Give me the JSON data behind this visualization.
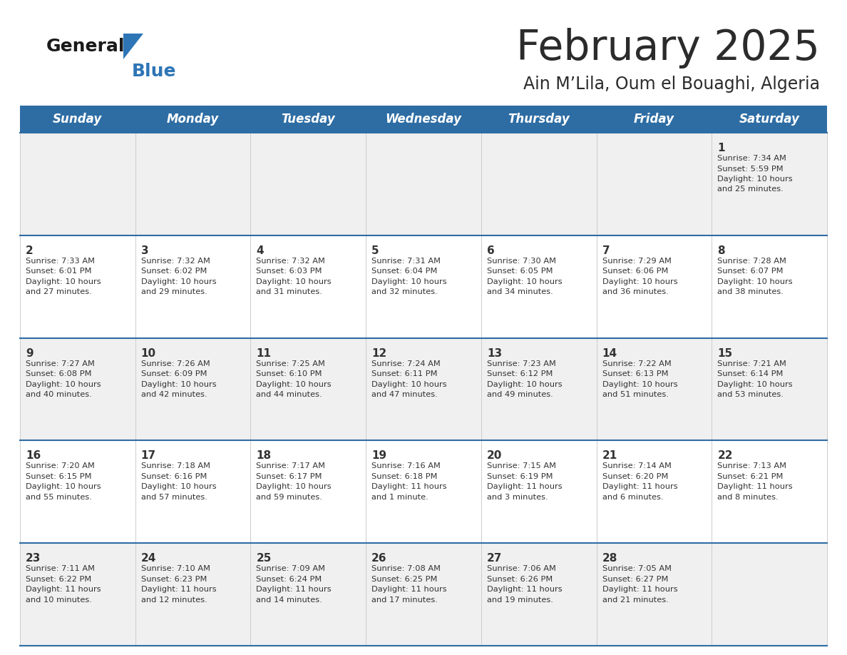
{
  "title": "February 2025",
  "subtitle": "Ain M’Lila, Oum el Bouaghi, Algeria",
  "header_bg": "#2E6DA4",
  "header_text_color": "#FFFFFF",
  "cell_bg_white": "#FFFFFF",
  "cell_bg_gray": "#F0F0F0",
  "border_color": "#2E6DA4",
  "sep_color": "#CCCCCC",
  "days_of_week": [
    "Sunday",
    "Monday",
    "Tuesday",
    "Wednesday",
    "Thursday",
    "Friday",
    "Saturday"
  ],
  "title_color": "#2B2B2B",
  "subtitle_color": "#2B2B2B",
  "day_num_color": "#333333",
  "info_color": "#333333",
  "logo_general_color": "#1a1a1a",
  "logo_blue_color": "#2E75B6",
  "logo_triangle_color": "#2E75B6",
  "calendar": [
    [
      {
        "day": null,
        "sunrise": null,
        "sunset": null,
        "daylight": null
      },
      {
        "day": null,
        "sunrise": null,
        "sunset": null,
        "daylight": null
      },
      {
        "day": null,
        "sunrise": null,
        "sunset": null,
        "daylight": null
      },
      {
        "day": null,
        "sunrise": null,
        "sunset": null,
        "daylight": null
      },
      {
        "day": null,
        "sunrise": null,
        "sunset": null,
        "daylight": null
      },
      {
        "day": null,
        "sunrise": null,
        "sunset": null,
        "daylight": null
      },
      {
        "day": 1,
        "sunrise": "7:34 AM",
        "sunset": "5:59 PM",
        "daylight": "10 hours\nand 25 minutes."
      }
    ],
    [
      {
        "day": 2,
        "sunrise": "7:33 AM",
        "sunset": "6:01 PM",
        "daylight": "10 hours\nand 27 minutes."
      },
      {
        "day": 3,
        "sunrise": "7:32 AM",
        "sunset": "6:02 PM",
        "daylight": "10 hours\nand 29 minutes."
      },
      {
        "day": 4,
        "sunrise": "7:32 AM",
        "sunset": "6:03 PM",
        "daylight": "10 hours\nand 31 minutes."
      },
      {
        "day": 5,
        "sunrise": "7:31 AM",
        "sunset": "6:04 PM",
        "daylight": "10 hours\nand 32 minutes."
      },
      {
        "day": 6,
        "sunrise": "7:30 AM",
        "sunset": "6:05 PM",
        "daylight": "10 hours\nand 34 minutes."
      },
      {
        "day": 7,
        "sunrise": "7:29 AM",
        "sunset": "6:06 PM",
        "daylight": "10 hours\nand 36 minutes."
      },
      {
        "day": 8,
        "sunrise": "7:28 AM",
        "sunset": "6:07 PM",
        "daylight": "10 hours\nand 38 minutes."
      }
    ],
    [
      {
        "day": 9,
        "sunrise": "7:27 AM",
        "sunset": "6:08 PM",
        "daylight": "10 hours\nand 40 minutes."
      },
      {
        "day": 10,
        "sunrise": "7:26 AM",
        "sunset": "6:09 PM",
        "daylight": "10 hours\nand 42 minutes."
      },
      {
        "day": 11,
        "sunrise": "7:25 AM",
        "sunset": "6:10 PM",
        "daylight": "10 hours\nand 44 minutes."
      },
      {
        "day": 12,
        "sunrise": "7:24 AM",
        "sunset": "6:11 PM",
        "daylight": "10 hours\nand 47 minutes."
      },
      {
        "day": 13,
        "sunrise": "7:23 AM",
        "sunset": "6:12 PM",
        "daylight": "10 hours\nand 49 minutes."
      },
      {
        "day": 14,
        "sunrise": "7:22 AM",
        "sunset": "6:13 PM",
        "daylight": "10 hours\nand 51 minutes."
      },
      {
        "day": 15,
        "sunrise": "7:21 AM",
        "sunset": "6:14 PM",
        "daylight": "10 hours\nand 53 minutes."
      }
    ],
    [
      {
        "day": 16,
        "sunrise": "7:20 AM",
        "sunset": "6:15 PM",
        "daylight": "10 hours\nand 55 minutes."
      },
      {
        "day": 17,
        "sunrise": "7:18 AM",
        "sunset": "6:16 PM",
        "daylight": "10 hours\nand 57 minutes."
      },
      {
        "day": 18,
        "sunrise": "7:17 AM",
        "sunset": "6:17 PM",
        "daylight": "10 hours\nand 59 minutes."
      },
      {
        "day": 19,
        "sunrise": "7:16 AM",
        "sunset": "6:18 PM",
        "daylight": "11 hours\nand 1 minute."
      },
      {
        "day": 20,
        "sunrise": "7:15 AM",
        "sunset": "6:19 PM",
        "daylight": "11 hours\nand 3 minutes."
      },
      {
        "day": 21,
        "sunrise": "7:14 AM",
        "sunset": "6:20 PM",
        "daylight": "11 hours\nand 6 minutes."
      },
      {
        "day": 22,
        "sunrise": "7:13 AM",
        "sunset": "6:21 PM",
        "daylight": "11 hours\nand 8 minutes."
      }
    ],
    [
      {
        "day": 23,
        "sunrise": "7:11 AM",
        "sunset": "6:22 PM",
        "daylight": "11 hours\nand 10 minutes."
      },
      {
        "day": 24,
        "sunrise": "7:10 AM",
        "sunset": "6:23 PM",
        "daylight": "11 hours\nand 12 minutes."
      },
      {
        "day": 25,
        "sunrise": "7:09 AM",
        "sunset": "6:24 PM",
        "daylight": "11 hours\nand 14 minutes."
      },
      {
        "day": 26,
        "sunrise": "7:08 AM",
        "sunset": "6:25 PM",
        "daylight": "11 hours\nand 17 minutes."
      },
      {
        "day": 27,
        "sunrise": "7:06 AM",
        "sunset": "6:26 PM",
        "daylight": "11 hours\nand 19 minutes."
      },
      {
        "day": 28,
        "sunrise": "7:05 AM",
        "sunset": "6:27 PM",
        "daylight": "11 hours\nand 21 minutes."
      },
      {
        "day": null,
        "sunrise": null,
        "sunset": null,
        "daylight": null
      }
    ]
  ],
  "row_bg_colors": [
    "#F0F0F0",
    "#FFFFFF",
    "#F0F0F0",
    "#FFFFFF",
    "#F0F0F0"
  ]
}
